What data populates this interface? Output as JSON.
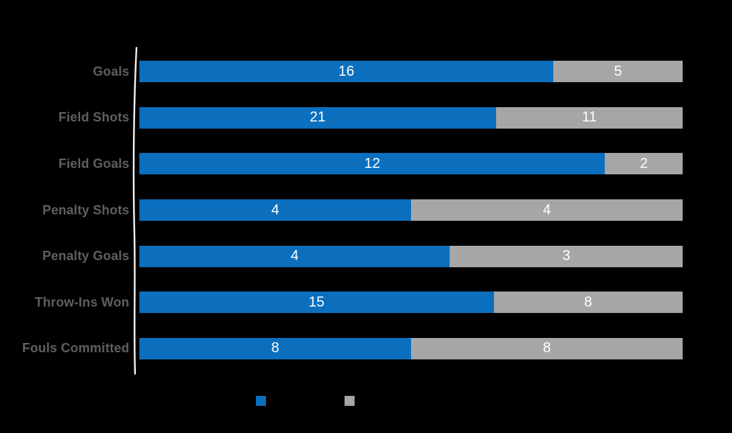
{
  "chart_data": {
    "type": "bar",
    "orientation": "horizontal",
    "stacked": true,
    "normalized_to_full_width": true,
    "title": "",
    "xlabel": "",
    "ylabel": "",
    "grid": false,
    "categories": [
      "Goals",
      "Field Shots",
      "Field Goals",
      "Penalty Shots",
      "Penalty Goals",
      "Throw-Ins Won",
      "Fouls Committed"
    ],
    "series": [
      {
        "name": "series-1-blue",
        "color": "#0b6fbe",
        "values": [
          16,
          21,
          12,
          4,
          4,
          15,
          8
        ]
      },
      {
        "name": "series-2-gray",
        "color": "#a6a6a6",
        "values": [
          5,
          11,
          2,
          4,
          3,
          8,
          8
        ]
      }
    ],
    "value_labels": {
      "shown": true,
      "position": "center-of-segment",
      "color": "#ffffff"
    },
    "legend": {
      "position": "bottom",
      "items": [
        {
          "label": "",
          "swatch_color": "#0b6fbe"
        },
        {
          "label": "",
          "swatch_color": "#a6a6a6"
        }
      ]
    }
  },
  "styles": {
    "background_color": "#000000",
    "category_label_color": "#5f5f5f",
    "axis_line_color": "#f1f1f1"
  }
}
